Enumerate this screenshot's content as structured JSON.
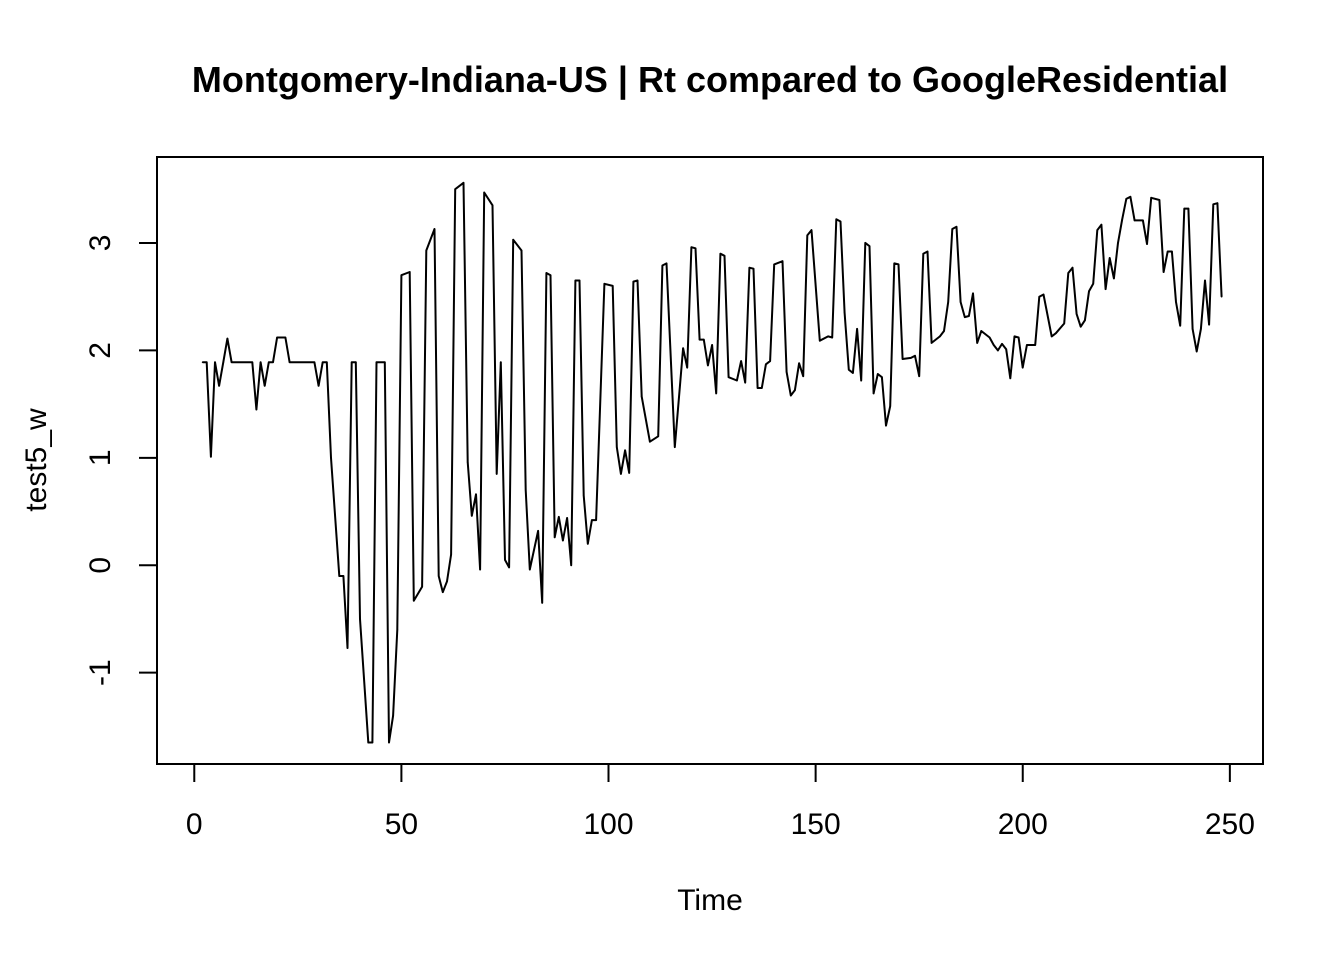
{
  "chart_data": {
    "type": "line",
    "title": "Montgomery-Indiana-US | Rt compared to GoogleResidential",
    "xlabel": "Time",
    "ylabel": "test5_w",
    "xlim": [
      -9,
      258
    ],
    "ylim": [
      -1.85,
      3.8
    ],
    "x_ticks": [
      0,
      50,
      100,
      150,
      200,
      250
    ],
    "y_ticks": [
      -1,
      0,
      1,
      2,
      3
    ],
    "grid": false,
    "line_color": "#000000",
    "series": [
      {
        "points": [
          [
            2,
            1.89
          ],
          [
            3,
            1.89
          ],
          [
            4,
            1.01
          ],
          [
            5,
            1.89
          ],
          [
            6,
            1.67
          ],
          [
            7,
            1.89
          ],
          [
            8,
            2.11
          ],
          [
            9,
            1.89
          ],
          [
            14,
            1.89
          ],
          [
            15,
            1.45
          ],
          [
            16,
            1.89
          ],
          [
            17,
            1.67
          ],
          [
            18,
            1.89
          ],
          [
            19,
            1.89
          ],
          [
            20,
            2.12
          ],
          [
            22,
            2.12
          ],
          [
            23,
            1.89
          ],
          [
            29,
            1.89
          ],
          [
            30,
            1.67
          ],
          [
            31,
            1.89
          ],
          [
            32,
            1.89
          ],
          [
            33,
            1.0
          ],
          [
            35,
            -0.1
          ],
          [
            36,
            -0.1
          ],
          [
            37,
            -0.77
          ],
          [
            38,
            1.89
          ],
          [
            39,
            1.89
          ],
          [
            40,
            -0.5
          ],
          [
            42,
            -1.65
          ],
          [
            43,
            -1.65
          ],
          [
            44,
            1.89
          ],
          [
            46,
            1.89
          ],
          [
            47,
            -1.65
          ],
          [
            48,
            -1.4
          ],
          [
            49,
            -0.6
          ],
          [
            50,
            2.7
          ],
          [
            52,
            2.73
          ],
          [
            53,
            -0.33
          ],
          [
            55,
            -0.2
          ],
          [
            56,
            2.93
          ],
          [
            58,
            3.13
          ],
          [
            59,
            -0.1
          ],
          [
            60,
            -0.25
          ],
          [
            61,
            -0.15
          ],
          [
            62,
            0.1
          ],
          [
            63,
            3.5
          ],
          [
            65,
            3.56
          ],
          [
            66,
            0.96
          ],
          [
            67,
            0.46
          ],
          [
            68,
            0.66
          ],
          [
            69,
            -0.04
          ],
          [
            70,
            3.47
          ],
          [
            72,
            3.35
          ],
          [
            73,
            0.85
          ],
          [
            74,
            1.89
          ],
          [
            75,
            0.05
          ],
          [
            76,
            -0.02
          ],
          [
            77,
            3.03
          ],
          [
            79,
            2.93
          ],
          [
            80,
            0.7
          ],
          [
            81,
            -0.04
          ],
          [
            83,
            0.32
          ],
          [
            84,
            -0.35
          ],
          [
            85,
            2.72
          ],
          [
            86,
            2.7
          ],
          [
            87,
            0.26
          ],
          [
            88,
            0.45
          ],
          [
            89,
            0.23
          ],
          [
            90,
            0.44
          ],
          [
            91,
            0.0
          ],
          [
            92,
            2.65
          ],
          [
            93,
            2.65
          ],
          [
            94,
            0.65
          ],
          [
            95,
            0.2
          ],
          [
            96,
            0.42
          ],
          [
            97,
            0.42
          ],
          [
            99,
            2.62
          ],
          [
            101,
            2.6
          ],
          [
            102,
            1.1
          ],
          [
            103,
            0.85
          ],
          [
            104,
            1.07
          ],
          [
            105,
            0.86
          ],
          [
            106,
            2.64
          ],
          [
            107,
            2.65
          ],
          [
            108,
            1.57
          ],
          [
            110,
            1.15
          ],
          [
            112,
            1.2
          ],
          [
            113,
            2.79
          ],
          [
            114,
            2.81
          ],
          [
            116,
            1.1
          ],
          [
            118,
            2.02
          ],
          [
            119,
            1.84
          ],
          [
            120,
            2.96
          ],
          [
            121,
            2.95
          ],
          [
            122,
            2.1
          ],
          [
            123,
            2.1
          ],
          [
            124,
            1.86
          ],
          [
            125,
            2.05
          ],
          [
            126,
            1.6
          ],
          [
            127,
            2.9
          ],
          [
            128,
            2.88
          ],
          [
            129,
            1.75
          ],
          [
            131,
            1.72
          ],
          [
            132,
            1.9
          ],
          [
            133,
            1.7
          ],
          [
            134,
            2.77
          ],
          [
            135,
            2.76
          ],
          [
            136,
            1.65
          ],
          [
            137,
            1.65
          ],
          [
            138,
            1.87
          ],
          [
            139,
            1.9
          ],
          [
            140,
            2.8
          ],
          [
            142,
            2.83
          ],
          [
            143,
            1.8
          ],
          [
            144,
            1.58
          ],
          [
            145,
            1.63
          ],
          [
            146,
            1.88
          ],
          [
            147,
            1.76
          ],
          [
            148,
            3.07
          ],
          [
            149,
            3.12
          ],
          [
            151,
            2.09
          ],
          [
            153,
            2.13
          ],
          [
            154,
            2.12
          ],
          [
            155,
            3.22
          ],
          [
            156,
            3.2
          ],
          [
            157,
            2.35
          ],
          [
            158,
            1.82
          ],
          [
            159,
            1.79
          ],
          [
            160,
            2.2
          ],
          [
            161,
            1.72
          ],
          [
            162,
            3.0
          ],
          [
            163,
            2.97
          ],
          [
            164,
            1.6
          ],
          [
            165,
            1.78
          ],
          [
            166,
            1.75
          ],
          [
            167,
            1.3
          ],
          [
            168,
            1.48
          ],
          [
            169,
            2.81
          ],
          [
            170,
            2.8
          ],
          [
            171,
            1.92
          ],
          [
            173,
            1.93
          ],
          [
            174,
            1.95
          ],
          [
            175,
            1.76
          ],
          [
            176,
            2.9
          ],
          [
            177,
            2.92
          ],
          [
            178,
            2.07
          ],
          [
            180,
            2.13
          ],
          [
            181,
            2.18
          ],
          [
            182,
            2.45
          ],
          [
            183,
            3.13
          ],
          [
            184,
            3.15
          ],
          [
            185,
            2.45
          ],
          [
            186,
            2.31
          ],
          [
            187,
            2.32
          ],
          [
            188,
            2.53
          ],
          [
            189,
            2.07
          ],
          [
            190,
            2.18
          ],
          [
            192,
            2.12
          ],
          [
            193,
            2.05
          ],
          [
            194,
            2.0
          ],
          [
            195,
            2.06
          ],
          [
            196,
            2.01
          ],
          [
            197,
            1.74
          ],
          [
            198,
            2.13
          ],
          [
            199,
            2.12
          ],
          [
            200,
            1.84
          ],
          [
            201,
            2.05
          ],
          [
            203,
            2.05
          ],
          [
            204,
            2.5
          ],
          [
            205,
            2.52
          ],
          [
            207,
            2.13
          ],
          [
            208,
            2.16
          ],
          [
            210,
            2.25
          ],
          [
            211,
            2.72
          ],
          [
            212,
            2.77
          ],
          [
            213,
            2.34
          ],
          [
            214,
            2.22
          ],
          [
            215,
            2.28
          ],
          [
            216,
            2.55
          ],
          [
            217,
            2.62
          ],
          [
            218,
            3.12
          ],
          [
            219,
            3.17
          ],
          [
            220,
            2.57
          ],
          [
            221,
            2.86
          ],
          [
            222,
            2.67
          ],
          [
            223,
            3.0
          ],
          [
            224,
            3.22
          ],
          [
            225,
            3.41
          ],
          [
            226,
            3.43
          ],
          [
            227,
            3.21
          ],
          [
            229,
            3.21
          ],
          [
            230,
            2.99
          ],
          [
            231,
            3.42
          ],
          [
            233,
            3.4
          ],
          [
            234,
            2.73
          ],
          [
            235,
            2.92
          ],
          [
            236,
            2.92
          ],
          [
            237,
            2.45
          ],
          [
            238,
            2.23
          ],
          [
            239,
            3.32
          ],
          [
            240,
            3.32
          ],
          [
            241,
            2.2
          ],
          [
            242,
            1.99
          ],
          [
            243,
            2.2
          ],
          [
            244,
            2.65
          ],
          [
            245,
            2.24
          ],
          [
            246,
            3.36
          ],
          [
            247,
            3.37
          ],
          [
            248,
            2.5
          ]
        ]
      }
    ]
  }
}
